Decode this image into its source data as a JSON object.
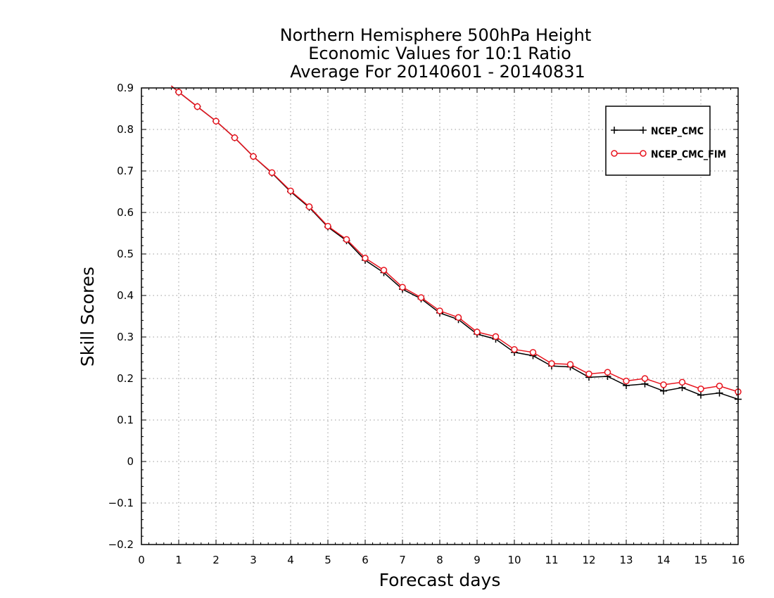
{
  "chart_data": {
    "type": "line",
    "title_lines": [
      "Northern Hemisphere 500hPa Height",
      "Economic Values for 10:1 Ratio",
      "Average For 20140601 - 20140831"
    ],
    "xlabel": "Forecast days",
    "ylabel": "Skill Scores",
    "xlim": [
      0,
      16
    ],
    "ylim": [
      -0.2,
      0.9
    ],
    "x_ticks": [
      "0",
      "1",
      "2",
      "3",
      "4",
      "5",
      "6",
      "7",
      "8",
      "9",
      "10",
      "11",
      "12",
      "13",
      "14",
      "15",
      "16"
    ],
    "y_ticks": [
      "-0.2",
      "-0.1",
      "0",
      "0.1",
      "0.2",
      "0.3",
      "0.4",
      "0.5",
      "0.6",
      "0.7",
      "0.8",
      "0.9"
    ],
    "grid": true,
    "legend_position": "top-right",
    "x": [
      1,
      1.5,
      2,
      2.5,
      3,
      3.5,
      4,
      4.5,
      5,
      5.5,
      6,
      6.5,
      7,
      7.5,
      8,
      8.5,
      9,
      9.5,
      10,
      10.5,
      11,
      11.5,
      12,
      12.5,
      13,
      13.5,
      14,
      14.5,
      15,
      15.5,
      16
    ],
    "series": [
      {
        "name": "NCEP_CMC",
        "color": "#000000",
        "marker": "plus",
        "values": [
          0.89,
          0.855,
          0.82,
          0.78,
          0.735,
          0.695,
          0.65,
          0.612,
          0.565,
          0.532,
          0.485,
          0.455,
          0.415,
          0.392,
          0.358,
          0.342,
          0.307,
          0.295,
          0.263,
          0.255,
          0.23,
          0.228,
          0.203,
          0.205,
          0.183,
          0.187,
          0.17,
          0.178,
          0.16,
          0.165,
          0.15
        ]
      },
      {
        "name": "NCEP_CMC_FIM",
        "color": "#e8141e",
        "marker": "circle",
        "values": [
          0.89,
          0.855,
          0.82,
          0.78,
          0.735,
          0.696,
          0.652,
          0.614,
          0.567,
          0.535,
          0.49,
          0.461,
          0.42,
          0.395,
          0.363,
          0.347,
          0.312,
          0.301,
          0.27,
          0.263,
          0.236,
          0.234,
          0.211,
          0.215,
          0.194,
          0.2,
          0.185,
          0.191,
          0.175,
          0.182,
          0.168
        ]
      }
    ],
    "line_start": [
      0.8,
      0.905
    ]
  }
}
